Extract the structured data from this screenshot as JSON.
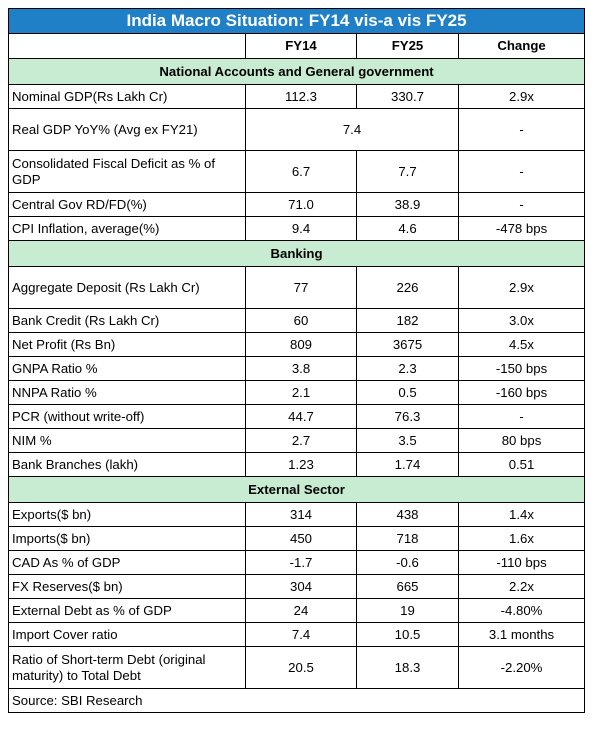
{
  "title": "India Macro Situation: FY14 vis-a vis FY25",
  "columns": [
    "",
    "FY14",
    "FY25",
    "Change"
  ],
  "sections": [
    {
      "name": "National Accounts and General government",
      "rows": [
        {
          "label": "Nominal GDP(Rs Lakh Cr)",
          "fy14": "112.3",
          "fy25": "330.7",
          "change": "2.9x"
        },
        {
          "label": "Real GDP YoY% (Avg ex FY21)",
          "merged": "7.4",
          "change": "-"
        },
        {
          "label": "Consolidated Fiscal Deficit as % of GDP",
          "fy14": "6.7",
          "fy25": "7.7",
          "change": "-"
        },
        {
          "label": "Central Gov RD/FD(%)",
          "fy14": "71.0",
          "fy25": "38.9",
          "change": "-"
        },
        {
          "label": "CPI Inflation, average(%)",
          "fy14": "9.4",
          "fy25": "4.6",
          "change": "-478 bps"
        }
      ]
    },
    {
      "name": "Banking",
      "rows": [
        {
          "label": "Aggregate Deposit (Rs Lakh Cr)",
          "fy14": "77",
          "fy25": "226",
          "change": "2.9x"
        },
        {
          "label": "Bank Credit (Rs Lakh Cr)",
          "fy14": "60",
          "fy25": "182",
          "change": "3.0x"
        },
        {
          "label": "Net Profit (Rs Bn)",
          "fy14": "809",
          "fy25": "3675",
          "change": "4.5x"
        },
        {
          "label": "GNPA Ratio %",
          "fy14": "3.8",
          "fy25": "2.3",
          "change": "-150 bps"
        },
        {
          "label": "NNPA Ratio %",
          "fy14": "2.1",
          "fy25": "0.5",
          "change": "-160 bps"
        },
        {
          "label": "PCR (without write-off)",
          "fy14": "44.7",
          "fy25": "76.3",
          "change": "-"
        },
        {
          "label": "NIM %",
          "fy14": "2.7",
          "fy25": "3.5",
          "change": "80 bps"
        },
        {
          "label": "Bank Branches (lakh)",
          "fy14": "1.23",
          "fy25": "1.74",
          "change": "0.51"
        }
      ]
    },
    {
      "name": "External Sector",
      "rows": [
        {
          "label": "Exports($ bn)",
          "fy14": "314",
          "fy25": "438",
          "change": "1.4x"
        },
        {
          "label": "Imports($ bn)",
          "fy14": "450",
          "fy25": "718",
          "change": "1.6x"
        },
        {
          "label": "CAD As % of GDP",
          "fy14": "-1.7",
          "fy25": "-0.6",
          "change": "-110 bps"
        },
        {
          "label": "FX Reserves($ bn)",
          "fy14": "304",
          "fy25": "665",
          "change": "2.2x"
        },
        {
          "label": "External Debt as % of GDP",
          "fy14": "24",
          "fy25": "19",
          "change": "-4.80%"
        },
        {
          "label": "Import Cover ratio",
          "fy14": "7.4",
          "fy25": "10.5",
          "change": "3.1 months"
        },
        {
          "label": "Ratio of Short-term Debt (original maturity) to Total Debt",
          "fy14": "20.5",
          "fy25": "18.3",
          "change": "-2.20%"
        }
      ]
    }
  ],
  "source": "Source: SBI Research",
  "colors": {
    "title_bg": "#1f7fc7",
    "section_bg": "#c7ecd1"
  }
}
